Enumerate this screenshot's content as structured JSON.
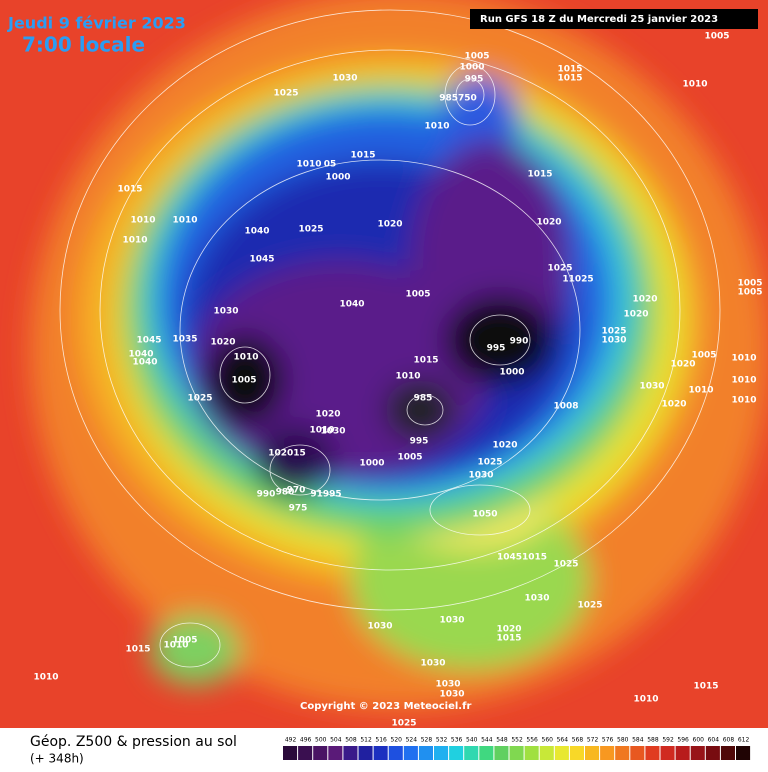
{
  "header": {
    "date": "Jeudi 9 février 2023",
    "time": "7:00 locale",
    "run": "Run GFS 18 Z du Mercredi 25 janvier 2023"
  },
  "map": {
    "labels": [
      "1005",
      "1000",
      "995",
      "985750",
      "1030",
      "1025",
      "1015",
      "1015",
      "1010",
      "1005",
      "1010",
      "1015",
      "1010",
      "05",
      "1000",
      "1015",
      "1010",
      "1010",
      "1010",
      "1040",
      "1025",
      "1020",
      "1015",
      "1020",
      "1045",
      "1025",
      "11025",
      "1005",
      "1040",
      "1030",
      "1020",
      "1020",
      "1005",
      "1005",
      "1025",
      "1030",
      "1045",
      "1040",
      "1040",
      "1035",
      "1020",
      "1010",
      "1005",
      "995",
      "990",
      "1015",
      "1000",
      "1010",
      "1005",
      "1020",
      "1010",
      "1010",
      "1030",
      "1010",
      "1010",
      "1020",
      "1008",
      "1025",
      "985",
      "1020",
      "1010",
      "1030",
      "995",
      "1020",
      "1005",
      "1000",
      "1025",
      "1030",
      "102015",
      "990",
      "980",
      "970",
      "91995",
      "975",
      "1050",
      "10451015",
      "1025",
      "1030",
      "1025",
      "1030",
      "1015",
      "1010",
      "1005",
      "1030",
      "1020",
      "1015",
      "1030",
      "1030",
      "1030",
      "1010",
      "1010",
      "1015",
      "1025"
    ]
  },
  "footer": {
    "title": "Géop. Z500 & pression au sol",
    "subtitle": "(+ 348h)",
    "copyright": "Copyright © 2023 Meteociel.fr"
  },
  "legend": {
    "scale": [
      492,
      496,
      500,
      504,
      508,
      512,
      516,
      520,
      524,
      528,
      532,
      536,
      540,
      544,
      548,
      552,
      556,
      560,
      564,
      568,
      572,
      576,
      580,
      584,
      588,
      592,
      596,
      600,
      604,
      608,
      612
    ]
  }
}
